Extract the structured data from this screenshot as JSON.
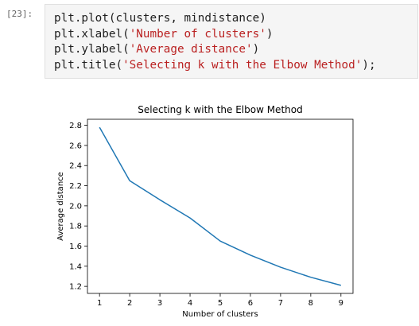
{
  "cell": {
    "prompt": "[23]:",
    "lines": [
      [
        {
          "t": "plt.plot(clusters, mindistance)",
          "k": "code"
        }
      ],
      [
        {
          "t": "plt.xlabel(",
          "k": "code"
        },
        {
          "t": "'Number of clusters'",
          "k": "str"
        },
        {
          "t": ")",
          "k": "code"
        }
      ],
      [
        {
          "t": "plt.ylabel(",
          "k": "code"
        },
        {
          "t": "'Average distance'",
          "k": "str"
        },
        {
          "t": ")",
          "k": "code"
        }
      ],
      [
        {
          "t": "plt.title(",
          "k": "code"
        },
        {
          "t": "'Selecting k with the Elbow Method'",
          "k": "str"
        },
        {
          "t": ");",
          "k": "code"
        }
      ]
    ]
  },
  "colors": {
    "line": "#1f77b4",
    "string": "#ba2121",
    "code": "#202020",
    "cell_bg": "#f5f5f5"
  },
  "chart_data": {
    "type": "line",
    "title": "Selecting k with the Elbow Method",
    "xlabel": "Number of clusters",
    "ylabel": "Average distance",
    "x": [
      1,
      2,
      3,
      4,
      5,
      6,
      7,
      8,
      9
    ],
    "series": [
      {
        "values": [
          2.78,
          2.25,
          2.06,
          1.88,
          1.65,
          1.51,
          1.39,
          1.29,
          1.21
        ]
      }
    ],
    "xticks": [
      1,
      2,
      3,
      4,
      5,
      6,
      7,
      8,
      9
    ],
    "yticks": [
      "1.2",
      "1.4",
      "1.6",
      "1.8",
      "2.0",
      "2.2",
      "2.4",
      "2.6",
      "2.8"
    ],
    "xlim": [
      0.6,
      9.4
    ],
    "ylim": [
      1.13,
      2.86
    ],
    "grid": false
  }
}
